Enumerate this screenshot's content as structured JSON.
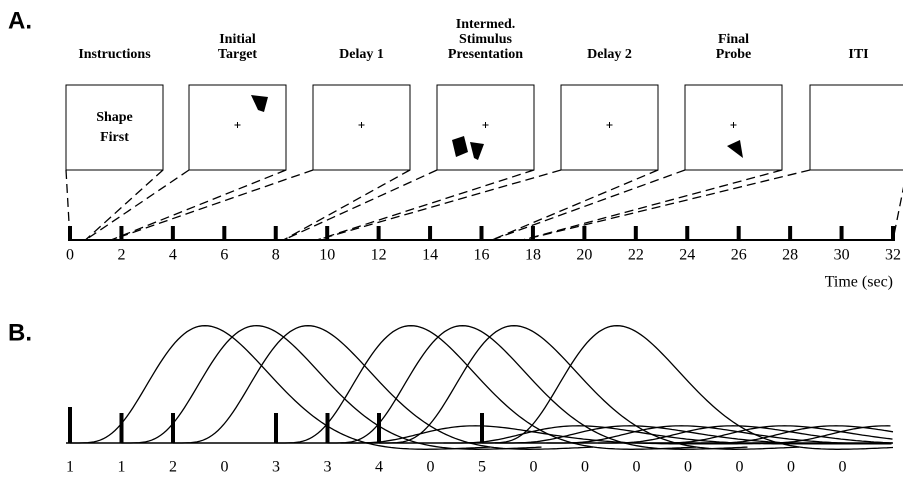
{
  "panel_a": {
    "label": "A.",
    "phases": [
      {
        "title": [
          "Instructions"
        ],
        "screen_text": [
          "Shape",
          "First"
        ]
      },
      {
        "title": [
          "Initial",
          "Target"
        ]
      },
      {
        "title": [
          "Delay 1"
        ]
      },
      {
        "title": [
          "Intermed.",
          "Stimulus",
          "Presentation"
        ]
      },
      {
        "title": [
          "Delay 2"
        ]
      },
      {
        "title": [
          "Final",
          "Probe"
        ]
      },
      {
        "title": [
          "ITI"
        ]
      }
    ],
    "time_axis": {
      "ticks": [
        0,
        2,
        4,
        6,
        8,
        10,
        12,
        14,
        16,
        18,
        20,
        22,
        24,
        26,
        28,
        30,
        32
      ],
      "label": "Time (sec)"
    }
  },
  "panel_b": {
    "label": "B.",
    "regressors": [
      1,
      1,
      2,
      0,
      3,
      3,
      4,
      0,
      5,
      0,
      0,
      0,
      0,
      0,
      0,
      0
    ]
  }
}
